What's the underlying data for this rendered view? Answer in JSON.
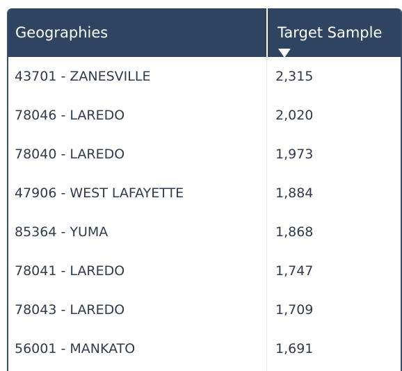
{
  "table": {
    "columns": {
      "geographies": "Geographies",
      "target_sample": "Target Sample"
    },
    "sort": {
      "column": "target_sample",
      "direction": "descending",
      "icon": "sort-desc-icon"
    },
    "rows": [
      {
        "geography": "43701 - ZANESVILLE",
        "target_sample": "2,315"
      },
      {
        "geography": "78046 - LAREDO",
        "target_sample": "2,020"
      },
      {
        "geography": "78040 - LAREDO",
        "target_sample": "1,973"
      },
      {
        "geography": "47906 - WEST LAFAYETTE",
        "target_sample": "1,884"
      },
      {
        "geography": "85364 - YUMA",
        "target_sample": "1,868"
      },
      {
        "geography": "78041 - LAREDO",
        "target_sample": "1,747"
      },
      {
        "geography": "78043 - LAREDO",
        "target_sample": "1,709"
      },
      {
        "geography": "56001 - MANKATO",
        "target_sample": "1,691"
      }
    ]
  },
  "colors": {
    "header_bg": "#2f4460",
    "header_text": "#ffffff",
    "body_text": "#2d3b4d",
    "border": "#3a4d66"
  }
}
